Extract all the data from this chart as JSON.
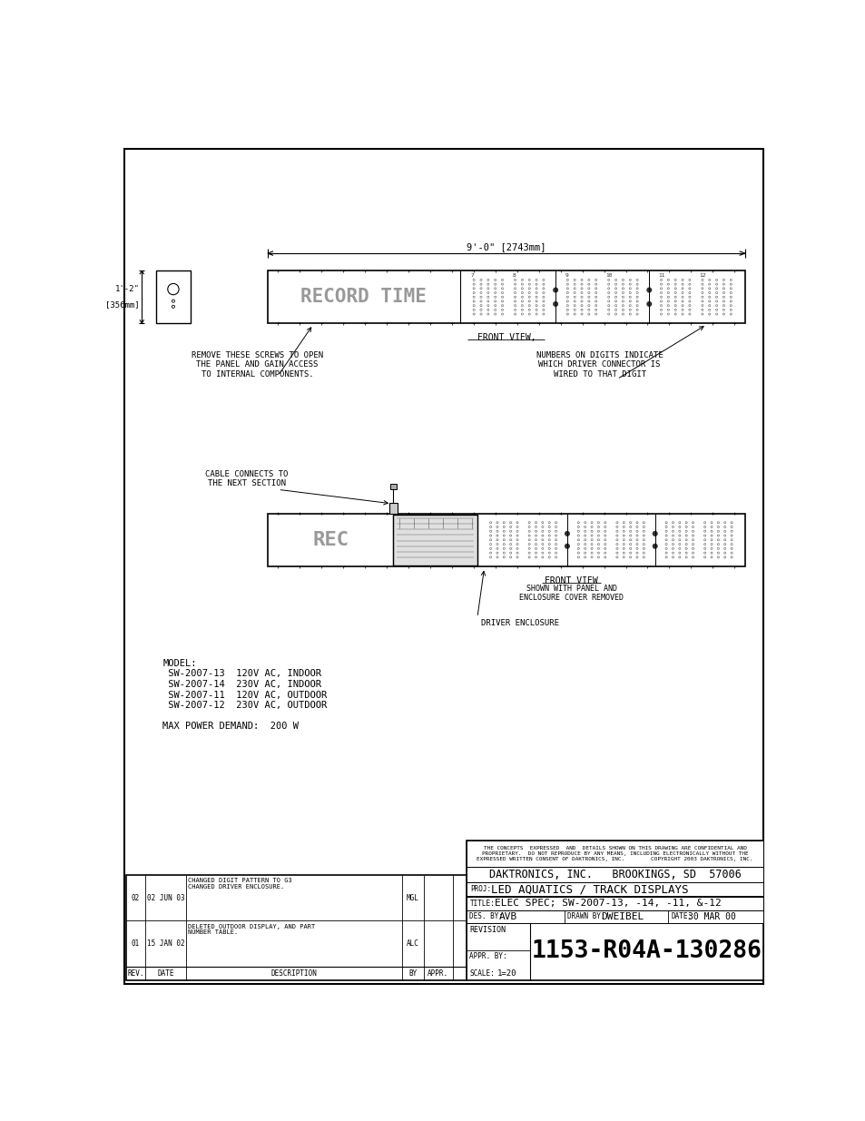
{
  "bg_color": "#ffffff",
  "line_color": "#000000",
  "text_color": "#000000",
  "title_block": {
    "confidential_text": "THE CONCEPTS  EXPRESSED  AND  DETAILS SHOWN ON THIS DRAWING ARE CONFIDENTIAL AND\nPROPRIETARY.  DO NOT REPRODUCE BY ANY MEANS, INCLUDING ELECTRONICALLY WITHOUT THE\nEXPRESSED WRITTEN CONSENT OF DAKTRONICS, INC.        COPYRIGHT 2003 DAKTRONICS, INC.",
    "company": "DAKTRONICS, INC.   BROOKINGS, SD  57006",
    "proj_label": "PROJ:",
    "proj_value": "LED AQUATICS / TRACK DISPLAYS",
    "title_label": "TITLE:",
    "title_value": "ELEC SPEC; SW-2007-13, -14, -11, &-12",
    "des_label": "DES. BY:",
    "des_value": "AVB",
    "drawn_label": "DRAWN BY:",
    "drawn_value": "DWEIBEL",
    "date_label": "DATE:",
    "date_value": "30 MAR 00",
    "revision_label": "REVISION",
    "appr_label": "APPR. BY:",
    "scale_label": "SCALE:",
    "scale_value": "1=20",
    "drawing_number": "1153-R04A-130286"
  },
  "revision_table": {
    "headers": [
      "REV.",
      "DATE",
      "DESCRIPTION",
      "BY",
      "APPR."
    ],
    "rows": [
      [
        "01",
        "15 JAN 02",
        "DELETED OUTDOOR DISPLAY, AND PART\nNUMBER TABLE.",
        "ALC",
        ""
      ],
      [
        "02",
        "02 JUN 03",
        "CHANGED DIGIT PATTERN TO G3\nCHANGED DRIVER ENCLOSURE.",
        "MGL",
        ""
      ]
    ]
  },
  "model_text": "MODEL:\n SW-2007-13  120V AC, INDOOR\n SW-2007-14  230V AC, INDOOR\n SW-2007-11  120V AC, OUTDOOR\n SW-2007-12  230V AC, OUTDOOR\n\nMAX POWER DEMAND:  200 W",
  "dim_text_top": "9'-0\" [2743mm]",
  "front_view_label1": "FRONT VIEW,",
  "front_view_label2": "FRONT VIEW",
  "front_view_sub2": "SHOWN WITH PANEL AND\nENCLOSURE COVER REMOVED",
  "driver_enclosure_label": "DRIVER ENCLOSURE",
  "screw_note": "REMOVE THESE SCREWS TO OPEN\nTHE PANEL AND GAIN ACCESS\nTO INTERNAL COMPONENTS.",
  "numbers_note": "NUMBERS ON DIGITS INDICATE\nWHICH DRIVER CONNECTOR IS\nWIRED TO THAT DIGIT",
  "cable_note": "CABLE CONNECTS TO\nTHE NEXT SECTION",
  "record_time_text": "RECORD TIME",
  "rec_text": "REC",
  "side_dim1": "1'-2\"",
  "side_dim2": "[356mm]"
}
